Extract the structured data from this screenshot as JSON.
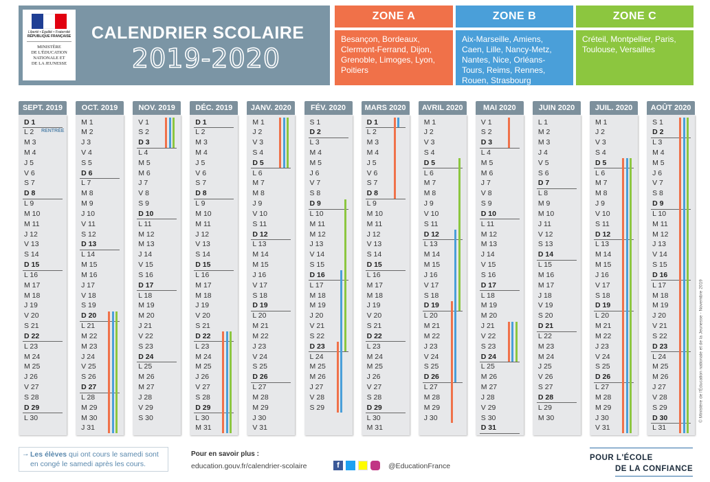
{
  "header": {
    "logo": {
      "motto": "Liberté • Égalité • Fraternité",
      "republic": "RÉPUBLIQUE FRANÇAISE",
      "ministry": [
        "MINISTÈRE",
        "DE L'ÉDUCATION",
        "NATIONALE ET",
        "DE LA JEUNESSE"
      ]
    },
    "title": "CALENDRIER SCOLAIRE",
    "year": "2019-2020"
  },
  "zones": [
    {
      "name": "ZONE A",
      "color": "#f07149",
      "cities": "Besançon, Bordeaux, Clermont-Ferrand, Dijon, Grenoble, Limoges, Lyon, Poitiers"
    },
    {
      "name": "ZONE B",
      "color": "#4a9fd9",
      "cities": "Aix-Marseille, Amiens, Caen, Lille, Nancy-Metz, Nantes, Nice, Orléans-Tours, Reims, Rennes, Rouen, Strasbourg"
    },
    {
      "name": "ZONE C",
      "color": "#8cc63f",
      "cities": "Créteil, Montpellier, Paris, Toulouse, Versailles"
    }
  ],
  "months": [
    {
      "title": "SEPT. 2019",
      "days": [
        "D 1",
        "L 2",
        "M 3",
        "M 4",
        "J 5",
        "V 6",
        "S 7",
        "D 8",
        "L 9",
        "M 10",
        "M 11",
        "J 12",
        "V 13",
        "S 14",
        "D 15",
        "L 16",
        "M 17",
        "M 18",
        "J 19",
        "V 20",
        "S 21",
        "D 22",
        "L 23",
        "M 24",
        "M 25",
        "J 26",
        "V 27",
        "S 28",
        "D 29",
        "L 30"
      ]
    },
    {
      "title": "OCT. 2019",
      "days": [
        "M 1",
        "M 2",
        "J 3",
        "V 4",
        "S 5",
        "D 6",
        "L 7",
        "M 8",
        "M 9",
        "J 10",
        "V 11",
        "S 12",
        "D 13",
        "L 14",
        "M 15",
        "M 16",
        "J 17",
        "V 18",
        "S 19",
        "D 20",
        "L 21",
        "M 22",
        "M 23",
        "J 24",
        "V 25",
        "S 26",
        "D 27",
        "L 28",
        "M 29",
        "M 30",
        "J 31"
      ]
    },
    {
      "title": "NOV. 2019",
      "days": [
        "V 1",
        "S 2",
        "D 3",
        "L 4",
        "M 5",
        "M 6",
        "J 7",
        "V 8",
        "S 9",
        "D 10",
        "L 11",
        "M 12",
        "M 13",
        "J 14",
        "V 15",
        "S 16",
        "D 17",
        "L 18",
        "M 19",
        "M 20",
        "J 21",
        "V 22",
        "S 23",
        "D 24",
        "L 25",
        "M 26",
        "M 27",
        "J 28",
        "V 29",
        "S 30"
      ]
    },
    {
      "title": "DÉC. 2019",
      "days": [
        "D 1",
        "L 2",
        "M 3",
        "M 4",
        "J 5",
        "V 6",
        "S 7",
        "D 8",
        "L 9",
        "M 10",
        "M 11",
        "J 12",
        "V 13",
        "S 14",
        "D 15",
        "L 16",
        "M 17",
        "M 18",
        "J 19",
        "V 20",
        "S 21",
        "D 22",
        "L 23",
        "M 24",
        "M 25",
        "J 26",
        "V 27",
        "S 28",
        "D 29",
        "L 30",
        "M 31"
      ]
    },
    {
      "title": "JANV. 2020",
      "days": [
        "M 1",
        "J 2",
        "V 3",
        "S 4",
        "D 5",
        "L 6",
        "M 7",
        "M 8",
        "J 9",
        "V 10",
        "S 11",
        "D 12",
        "L 13",
        "M 14",
        "M 15",
        "J 16",
        "V 17",
        "S 18",
        "D 19",
        "L 20",
        "M 21",
        "M 22",
        "J 23",
        "V 24",
        "S 25",
        "D 26",
        "L 27",
        "M 28",
        "M 29",
        "J 30",
        "V 31"
      ]
    },
    {
      "title": "FÉV. 2020",
      "days": [
        "S 1",
        "D 2",
        "L 3",
        "M 4",
        "M 5",
        "J 6",
        "V 7",
        "S 8",
        "D 9",
        "L 10",
        "M 11",
        "M 12",
        "J 13",
        "V 14",
        "S 15",
        "D 16",
        "L 17",
        "M 18",
        "M 19",
        "J 20",
        "V 21",
        "S 22",
        "D 23",
        "L 24",
        "M 25",
        "M 26",
        "J 27",
        "V 28",
        "S 29"
      ]
    },
    {
      "title": "MARS 2020",
      "days": [
        "D 1",
        "L 2",
        "M 3",
        "M 4",
        "J 5",
        "V 6",
        "S 7",
        "D 8",
        "L 9",
        "M 10",
        "M 11",
        "J 12",
        "V 13",
        "S 14",
        "D 15",
        "L 16",
        "M 17",
        "M 18",
        "J 19",
        "V 20",
        "S 21",
        "D 22",
        "L 23",
        "M 24",
        "M 25",
        "J 26",
        "V 27",
        "S 28",
        "D 29",
        "L 30",
        "M 31"
      ]
    },
    {
      "title": "AVRIL 2020",
      "days": [
        "M 1",
        "J 2",
        "V 3",
        "S 4",
        "D 5",
        "L 6",
        "M 7",
        "M 8",
        "J 9",
        "V 10",
        "S 11",
        "D 12",
        "L 13",
        "M 14",
        "M 15",
        "J 16",
        "V 17",
        "S 18",
        "D 19",
        "L 20",
        "M 21",
        "M 22",
        "J 23",
        "V 24",
        "S 25",
        "D 26",
        "L 27",
        "M 28",
        "M 29",
        "J 30"
      ]
    },
    {
      "title": "MAI 2020",
      "days": [
        "V 1",
        "S 2",
        "D 3",
        "L 4",
        "M 5",
        "M 6",
        "J 7",
        "V 8",
        "S 9",
        "D 10",
        "L 11",
        "M 12",
        "M 13",
        "J 14",
        "V 15",
        "S 16",
        "D 17",
        "L 18",
        "M 19",
        "M 20",
        "J 21",
        "V 22",
        "S 23",
        "D 24",
        "L 25",
        "M 26",
        "M 27",
        "J 28",
        "V 29",
        "S 30",
        "D 31"
      ]
    },
    {
      "title": "JUIN 2020",
      "days": [
        "L 1",
        "M 2",
        "M 3",
        "J 4",
        "V 5",
        "S 6",
        "D 7",
        "L 8",
        "M 9",
        "M 10",
        "J 11",
        "V 12",
        "S 13",
        "D 14",
        "L 15",
        "M 16",
        "M 17",
        "J 18",
        "V 19",
        "S 20",
        "D 21",
        "L 22",
        "M 23",
        "M 24",
        "J 25",
        "V 26",
        "S 27",
        "D 28",
        "L 29",
        "M 30"
      ]
    },
    {
      "title": "JUIL. 2020",
      "days": [
        "M 1",
        "J 2",
        "V 3",
        "S 4",
        "D 5",
        "L 6",
        "M 7",
        "M 8",
        "J 9",
        "V 10",
        "S 11",
        "D 12",
        "L 13",
        "M 14",
        "M 15",
        "J 16",
        "V 17",
        "S 18",
        "D 19",
        "L 20",
        "M 21",
        "M 22",
        "J 23",
        "V 24",
        "S 25",
        "D 26",
        "L 27",
        "M 28",
        "M 29",
        "J 30",
        "V 31"
      ]
    },
    {
      "title": "AOÛT 2020",
      "days": [
        "S 1",
        "D 2",
        "L 3",
        "M 4",
        "M 5",
        "J 6",
        "V 7",
        "S 8",
        "D 9",
        "L 10",
        "M 11",
        "M 12",
        "J 13",
        "V 14",
        "S 15",
        "D 16",
        "L 17",
        "M 18",
        "M 19",
        "J 20",
        "V 21",
        "S 22",
        "D 23",
        "L 24",
        "M 25",
        "M 26",
        "J 27",
        "V 28",
        "S 29",
        "D 30",
        "L 31"
      ]
    }
  ],
  "rentree": {
    "month": 0,
    "day": 2,
    "label": "RENTRÉE"
  },
  "vacations": [
    {
      "month": 1,
      "from": 20,
      "to": 31,
      "zones": [
        0,
        1,
        2
      ]
    },
    {
      "month": 2,
      "from": 1,
      "to": 3,
      "zones": [
        0,
        1,
        2
      ]
    },
    {
      "month": 3,
      "from": 22,
      "to": 31,
      "zones": [
        0,
        1,
        2
      ]
    },
    {
      "month": 4,
      "from": 1,
      "to": 5,
      "zones": [
        0,
        1,
        2
      ]
    },
    {
      "month": 5,
      "from": 23,
      "to": 29,
      "zones": [
        0
      ]
    },
    {
      "month": 6,
      "from": 1,
      "to": 8,
      "zones": [
        0
      ]
    },
    {
      "month": 5,
      "from": 16,
      "to": 29,
      "zones": [
        1
      ]
    },
    {
      "month": 6,
      "from": 1,
      "to": 1,
      "zones": [
        1
      ]
    },
    {
      "month": 5,
      "from": 9,
      "to": 23,
      "zones": [
        2
      ]
    },
    {
      "month": 7,
      "from": 19,
      "to": 30,
      "zones": [
        0
      ]
    },
    {
      "month": 8,
      "from": 1,
      "to": 3,
      "zones": [
        0
      ]
    },
    {
      "month": 7,
      "from": 12,
      "to": 26,
      "zones": [
        1
      ]
    },
    {
      "month": 7,
      "from": 5,
      "to": 19,
      "zones": [
        2
      ]
    },
    {
      "month": 8,
      "from": 21,
      "to": 24,
      "zones": [
        0,
        1,
        2
      ]
    },
    {
      "month": 10,
      "from": 5,
      "to": 31,
      "zones": [
        0,
        1,
        2
      ]
    },
    {
      "month": 11,
      "from": 1,
      "to": 31,
      "zones": [
        0,
        1,
        2
      ]
    }
  ],
  "footer": {
    "note": {
      "bold": "Les élèves",
      "text": " qui ont cours le samedi sont en congé le samedi après les cours."
    },
    "more": {
      "title": "Pour en savoir plus :",
      "url": "education.gouv.fr/calendrier-scolaire"
    },
    "social": "@EducationFrance",
    "slogan": [
      "POUR L'ÉCOLE",
      "DE LA CONFIANCE"
    ],
    "copyright": "© Ministère de l'Éducation nationale et de la Jeunesse - Novembre 2019"
  }
}
